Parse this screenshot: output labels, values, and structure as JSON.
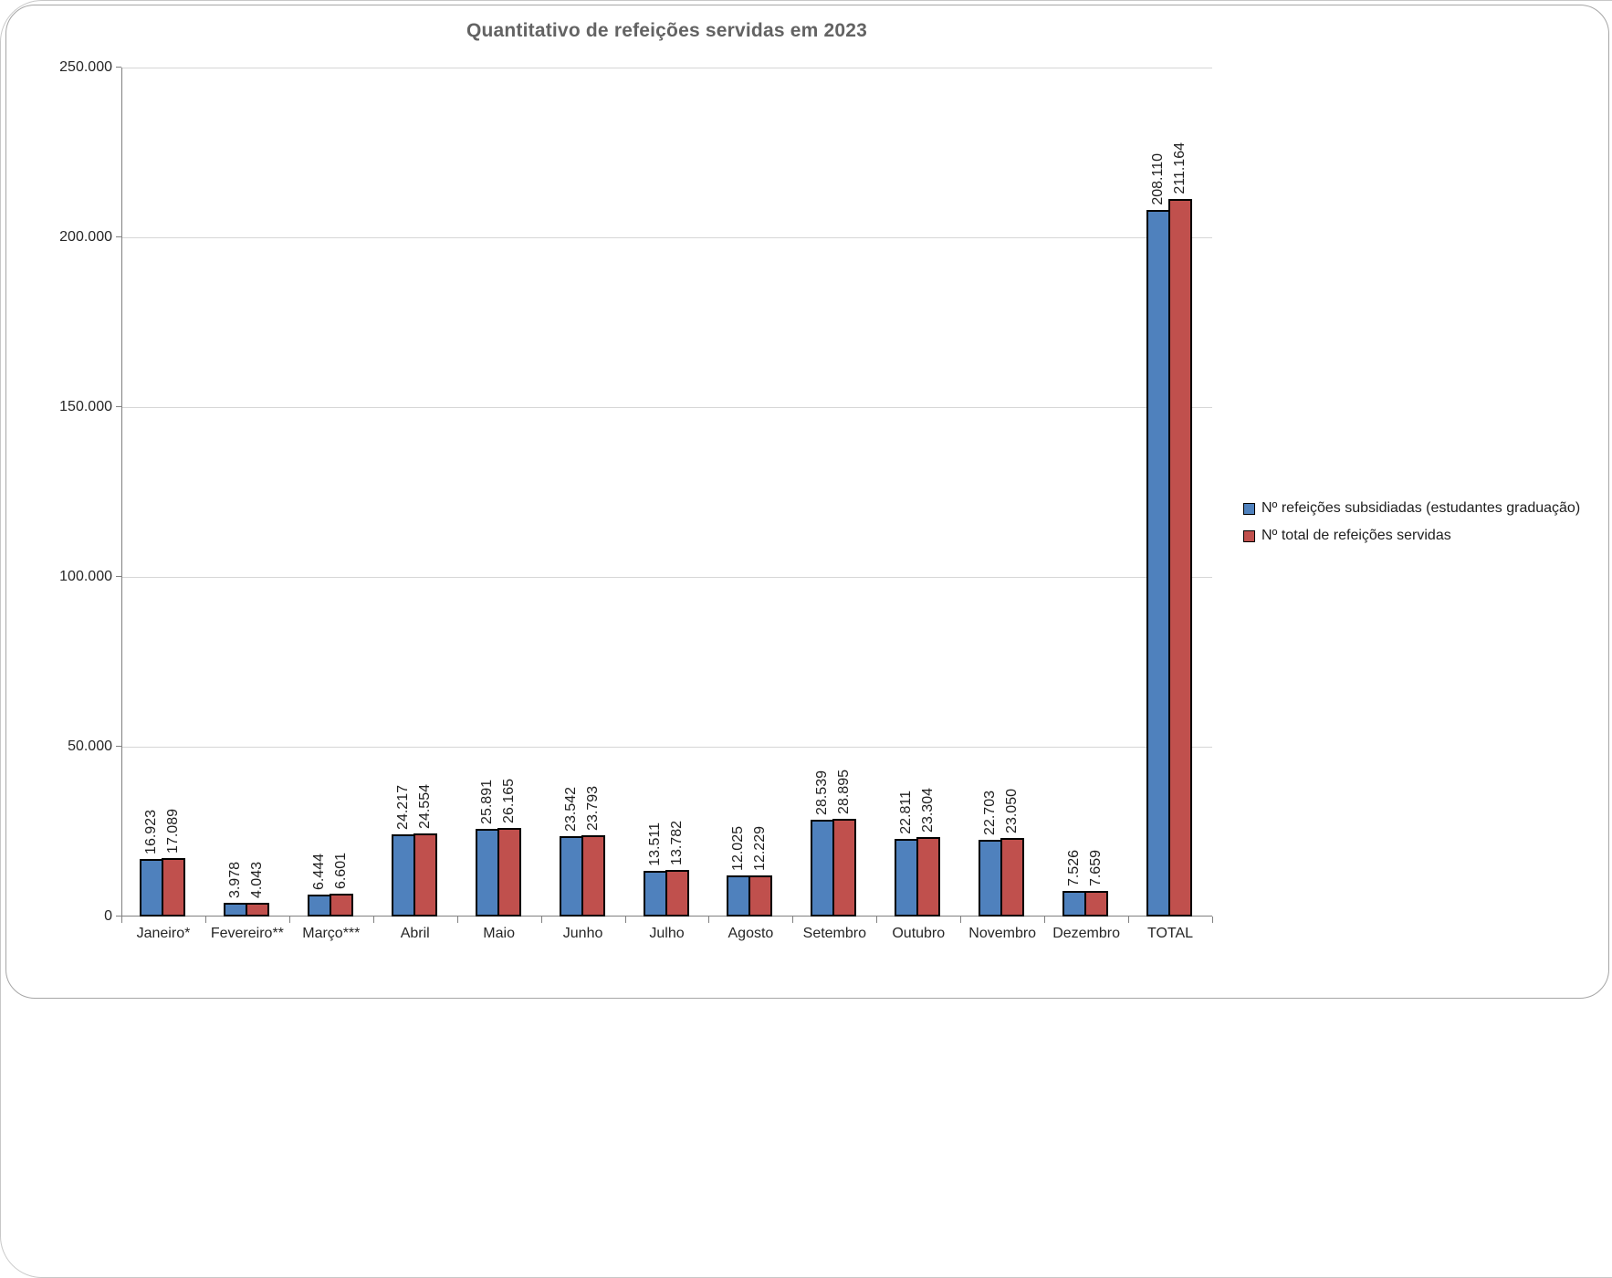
{
  "chart_data": {
    "type": "bar",
    "title": "Quantitativo de refeições servidas em 2023",
    "categories": [
      "Janeiro*",
      "Fevereiro**",
      "Março***",
      "Abril",
      "Maio",
      "Junho",
      "Julho",
      "Agosto",
      "Setembro",
      "Outubro",
      "Novembro",
      "Dezembro",
      "TOTAL"
    ],
    "series": [
      {
        "name": "Nº refeições subsidiadas (estudantes graduação)",
        "color": "#4F81BD",
        "values": [
          16923,
          3978,
          6444,
          24217,
          25891,
          23542,
          13511,
          12025,
          28539,
          22811,
          22703,
          7526,
          208110
        ],
        "labels": [
          "16.923",
          "3.978",
          "6.444",
          "24.217",
          "25.891",
          "23.542",
          "13.511",
          "12.025",
          "28.539",
          "22.811",
          "22.703",
          "7.526",
          "208.110"
        ]
      },
      {
        "name": "Nº total de refeições servidas",
        "color": "#C0504D",
        "values": [
          17089,
          4043,
          6601,
          24554,
          26165,
          23793,
          13782,
          12229,
          28895,
          23304,
          23050,
          7659,
          211164
        ],
        "labels": [
          "17.089",
          "4.043",
          "6.601",
          "24.554",
          "26.165",
          "23.793",
          "13.782",
          "12.229",
          "28.895",
          "23.304",
          "23.050",
          "7.659",
          "211.164"
        ]
      }
    ],
    "ylim": [
      0,
      250000
    ],
    "ytick_interval": 50000,
    "ytick_labels": [
      "0",
      "50.000",
      "100.000",
      "150.000",
      "200.000",
      "250.000"
    ],
    "grid": true,
    "legend_position": "right",
    "data_label_rotation": 90,
    "colors": {
      "axis": "#808080",
      "gridline": "#D6D6D6",
      "bar_border": "#000000",
      "tick_text": "#262626",
      "title_text": "#636363"
    }
  }
}
